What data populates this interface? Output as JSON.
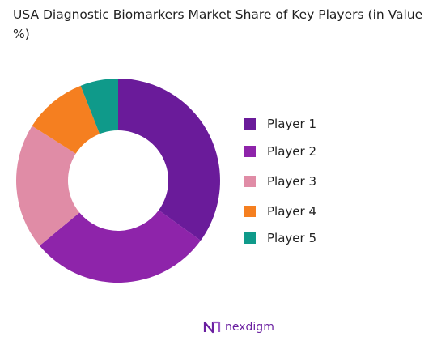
{
  "chart_data": {
    "type": "pie",
    "donut": true,
    "title": "USA Diagnostic Biomarkers  Market Share of Key Players (in Value %)",
    "categories": [
      "Player 1",
      "Player 2",
      "Player 3",
      "Player 4",
      "Player 5"
    ],
    "values": [
      35,
      29,
      20,
      10,
      6
    ],
    "colors": [
      "#6a1b9a",
      "#8e24aa",
      "#e08ca6",
      "#f57f20",
      "#0f9a8a"
    ],
    "legend_position": "right"
  },
  "branding": {
    "logo_text": "nexdigm",
    "logo_icon": "nexdigm-logo-icon",
    "color": "#6a1fa0"
  }
}
